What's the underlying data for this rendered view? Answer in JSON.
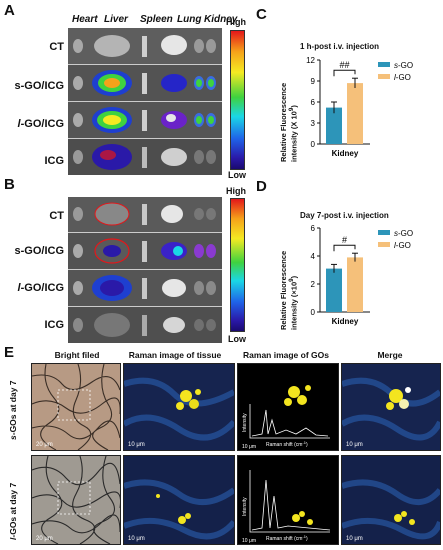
{
  "panels": {
    "A": "A",
    "B": "B",
    "C": "C",
    "D": "D",
    "E": "E"
  },
  "organs": [
    "Heart",
    "Liver",
    "Spleen",
    "Lung",
    "Kidney"
  ],
  "rows_prefix": {
    "ct": "CT",
    "sgo": "s",
    "lgo": "l",
    "icg": "ICG"
  },
  "rows_suffix": {
    "sgo": "-GO/ICG",
    "lgo": "-GO/ICG"
  },
  "colorbar": {
    "high": "High",
    "low": "Low"
  },
  "chart_data": [
    {
      "type": "bar",
      "title": "1 h-post i.v. injection",
      "ylabel_main": "Relative Fluorescence",
      "ylabel_unit": "intensity (X 10",
      "ylabel_exp": "9",
      "ylabel_close": ")",
      "xlabel": "Kidney",
      "ylim": [
        0,
        12
      ],
      "yticks": [
        "0",
        "3",
        "6",
        "9",
        "12"
      ],
      "sig": "##",
      "series": [
        {
          "name_prefix": "s",
          "name": "-GO",
          "value": 5.2,
          "error": 0.8,
          "color": "#2d95b9"
        },
        {
          "name_prefix": "l",
          "name": "-GO",
          "value": 8.7,
          "error": 0.7,
          "color": "#f5c07a"
        }
      ]
    },
    {
      "type": "bar",
      "title": "Day 7-post i.v. injection",
      "ylabel_main": "Relative Fluorescence",
      "ylabel_unit": "intensity (×10",
      "ylabel_exp": "9",
      "ylabel_close": ")",
      "xlabel": "Kidney",
      "ylim": [
        0,
        6
      ],
      "yticks": [
        "0",
        "2",
        "4",
        "6"
      ],
      "sig": "#",
      "series": [
        {
          "name_prefix": "s",
          "name": "-GO",
          "value": 3.1,
          "error": 0.3,
          "color": "#2d95b9"
        },
        {
          "name_prefix": "l",
          "name": "-GO",
          "value": 3.9,
          "error": 0.3,
          "color": "#f5c07a"
        }
      ]
    }
  ],
  "E": {
    "headers": [
      "Bright filed",
      "Raman image of tissue",
      "Raman image of GOs",
      "Merge"
    ],
    "row1": {
      "prefix": "s",
      "suffix": "-GOs at day 7"
    },
    "row2": {
      "prefix": "l",
      "suffix": "-GOs at day 7"
    },
    "scale_labels": {
      "bf": "20 μm",
      "r": "10 μm"
    },
    "inset_xlabel_main": "Raman shift (cm",
    "inset_xlabel_exp": "-1",
    "inset_xlabel_close": ")",
    "inset_ylabel": "Intensity"
  }
}
